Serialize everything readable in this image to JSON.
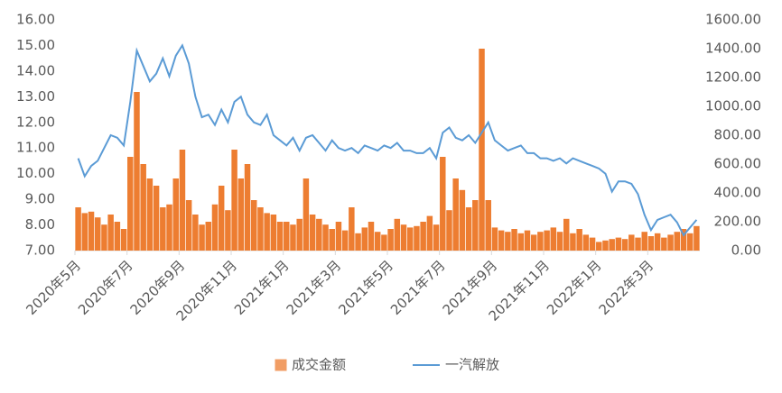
{
  "chart_data": {
    "type": "bar-line",
    "categories": [
      "2020年5月",
      null,
      null,
      null,
      null,
      null,
      null,
      null,
      "2020年7月",
      null,
      null,
      null,
      null,
      null,
      null,
      null,
      "2020年9月",
      null,
      null,
      null,
      null,
      null,
      null,
      null,
      "2020年11月",
      null,
      null,
      null,
      null,
      null,
      null,
      null,
      "2021年1月",
      null,
      null,
      null,
      null,
      null,
      null,
      null,
      "2021年3月",
      null,
      null,
      null,
      null,
      null,
      null,
      null,
      "2021年5月",
      null,
      null,
      null,
      null,
      null,
      null,
      null,
      "2021年7月",
      null,
      null,
      null,
      null,
      null,
      null,
      null,
      "2021年9月",
      null,
      null,
      null,
      null,
      null,
      null,
      null,
      "2021年11月",
      null,
      null,
      null,
      null,
      null,
      null,
      null,
      "2022年1月",
      null,
      null,
      null,
      null,
      null,
      null,
      null,
      "2022年3月",
      null,
      null,
      null,
      null,
      null,
      null,
      null
    ],
    "series": [
      {
        "name": "成交金额",
        "type": "bar",
        "axis": "y2",
        "color": "#ed7d31",
        "values": [
          300,
          260,
          270,
          230,
          180,
          250,
          200,
          150,
          650,
          1100,
          600,
          500,
          450,
          300,
          320,
          500,
          700,
          350,
          250,
          180,
          200,
          320,
          450,
          280,
          700,
          500,
          600,
          350,
          300,
          260,
          250,
          200,
          200,
          180,
          220,
          500,
          250,
          220,
          180,
          150,
          200,
          140,
          300,
          120,
          160,
          200,
          130,
          110,
          150,
          220,
          180,
          160,
          170,
          200,
          240,
          180,
          650,
          280,
          500,
          420,
          300,
          350,
          1400,
          350,
          160,
          140,
          130,
          150,
          120,
          140,
          110,
          130,
          140,
          160,
          130,
          220,
          120,
          150,
          110,
          90,
          60,
          70,
          80,
          90,
          80,
          110,
          90,
          130,
          100,
          120,
          90,
          110,
          130,
          150,
          120,
          170
        ]
      },
      {
        "name": "一汽解放",
        "type": "line",
        "color": "#5b9bd5",
        "values": [
          10.6,
          9.9,
          10.3,
          10.5,
          11.0,
          11.5,
          11.4,
          11.1,
          12.8,
          14.8,
          14.2,
          13.6,
          13.9,
          14.5,
          13.8,
          14.6,
          15.0,
          14.3,
          13.0,
          12.2,
          12.3,
          11.9,
          12.5,
          12.0,
          12.8,
          13.0,
          12.3,
          12.0,
          11.9,
          12.3,
          11.5,
          11.3,
          11.1,
          11.4,
          10.9,
          11.4,
          11.5,
          11.2,
          10.9,
          11.3,
          11.0,
          10.9,
          11.0,
          10.8,
          11.1,
          11.0,
          10.9,
          11.1,
          11.0,
          11.2,
          10.9,
          10.9,
          10.8,
          10.8,
          11.0,
          10.6,
          11.6,
          11.8,
          11.4,
          11.3,
          11.5,
          11.2,
          11.6,
          12.0,
          11.3,
          11.1,
          10.9,
          11.0,
          11.1,
          10.8,
          10.8,
          10.6,
          10.6,
          10.5,
          10.6,
          10.4,
          10.6,
          10.5,
          10.4,
          10.3,
          10.2,
          10.0,
          9.3,
          9.7,
          9.7,
          9.6,
          9.2,
          8.4,
          7.8,
          8.2,
          8.3,
          8.4,
          8.1,
          7.6,
          7.9,
          8.2
        ]
      }
    ],
    "ylim": [
      7,
      16
    ],
    "yticks": [
      {
        "value": 7,
        "label": "7.00"
      },
      {
        "value": 8,
        "label": "8.00"
      },
      {
        "value": 9,
        "label": "9.00"
      },
      {
        "value": 10,
        "label": "10.00"
      },
      {
        "value": 11,
        "label": "11.00"
      },
      {
        "value": 12,
        "label": "12.00"
      },
      {
        "value": 13,
        "label": "13.00"
      },
      {
        "value": 14,
        "label": "14.00"
      },
      {
        "value": 15,
        "label": "15.00"
      },
      {
        "value": 16,
        "label": "16.00"
      }
    ],
    "y2lim": [
      0,
      1600
    ],
    "y2ticks": [
      {
        "value": 0,
        "label": "0.00"
      },
      {
        "value": 200,
        "label": "200.00"
      },
      {
        "value": 400,
        "label": "400.00"
      },
      {
        "value": 600,
        "label": "600.00"
      },
      {
        "value": 800,
        "label": "800.00"
      },
      {
        "value": 1000,
        "label": "1000.00"
      },
      {
        "value": 1200,
        "label": "1200.00"
      },
      {
        "value": 1400,
        "label": "1400.00"
      },
      {
        "value": 1600,
        "label": "1600.00"
      }
    ],
    "legend": "bottom"
  }
}
